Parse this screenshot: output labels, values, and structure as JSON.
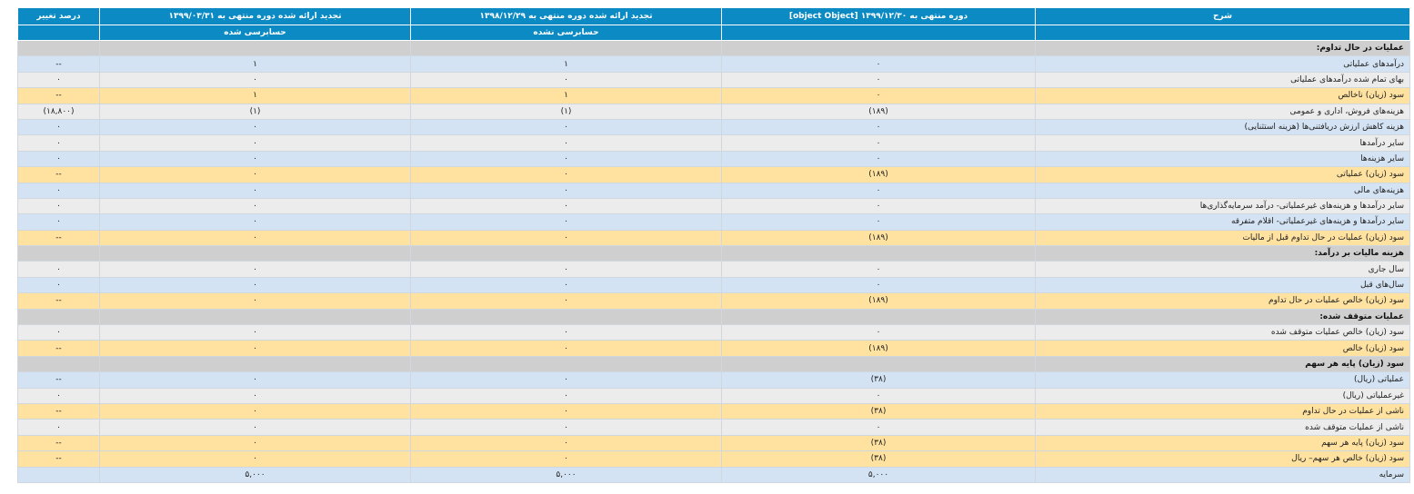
{
  "header": {
    "col_desc": "شرح",
    "col_p1": "دوره منتهی به ۱۳۹۹/۱۲/۳۰ [object Object]",
    "col_p2": "تجدید ارائه شده دوره منتهی به ۱۳۹۸/۱۲/۲۹",
    "col_p3": "تجدید ارائه شده دوره منتهی به ۱۳۹۹/۰۳/۳۱",
    "col_change": "درصد تغییر",
    "sub_p1": "",
    "sub_p2": "حسابرسی نشده",
    "sub_p3": "حسابرسی شده"
  },
  "colors": {
    "header_bg": "#0b8ac4",
    "row_blue": "#d4e3f3",
    "row_gray": "#ececec",
    "row_yellow": "#ffe2a0",
    "section_bg": "#cfcfcf",
    "negative": "#e01f1f"
  },
  "rows": [
    {
      "type": "section",
      "label": "عملیات در حال تداوم:"
    },
    {
      "type": "blue",
      "label": "درآمدهای عملیاتی",
      "p1": "۰",
      "p2": "۱",
      "p3": "۱",
      "change": "--"
    },
    {
      "type": "gray",
      "label": "بهای تمام شده درآمدهای عملیاتی",
      "p1": "۰",
      "p2": "۰",
      "p3": "۰",
      "change": "۰"
    },
    {
      "type": "yellow",
      "label": "سود (زیان) ناخالص",
      "p1": "۰",
      "p2": "۱",
      "p3": "۱",
      "change": "--"
    },
    {
      "type": "gray",
      "label": "هزینه‌های فروش، اداری و عمومی",
      "p1": "(۱۸۹)",
      "p2": "(۱)",
      "p3": "(۱)",
      "change": "(۱۸,۸۰۰)",
      "neg": true
    },
    {
      "type": "blue",
      "label": "هزینه کاهش ارزش دریافتنی‌ها (هزینه استثنایی)",
      "p1": "۰",
      "p2": "۰",
      "p3": "۰",
      "change": "۰"
    },
    {
      "type": "gray",
      "label": "سایر درآمدها",
      "p1": "۰",
      "p2": "۰",
      "p3": "۰",
      "change": "۰"
    },
    {
      "type": "blue",
      "label": "سایر هزینه‌ها",
      "p1": "۰",
      "p2": "۰",
      "p3": "۰",
      "change": "۰"
    },
    {
      "type": "yellow",
      "label": "سود (زیان) عملیاتی",
      "p1": "(۱۸۹)",
      "p2": "۰",
      "p3": "۰",
      "change": "--",
      "neg_p1": true
    },
    {
      "type": "blue",
      "label": "هزینه‌های مالی",
      "p1": "۰",
      "p2": "۰",
      "p3": "۰",
      "change": "۰"
    },
    {
      "type": "gray",
      "label": "سایر درآمدها و هزینه‌های غیرعملیاتی- درآمد سرمایه‌گذاری‌ها",
      "p1": "۰",
      "p2": "۰",
      "p3": "۰",
      "change": "۰"
    },
    {
      "type": "blue",
      "label": "سایر درآمدها و هزینه‌های غیرعملیاتی- اقلام متفرقه",
      "p1": "۰",
      "p2": "۰",
      "p3": "۰",
      "change": "۰"
    },
    {
      "type": "yellow",
      "label": "سود (زیان) عملیات در حال تداوم قبل از مالیات",
      "p1": "(۱۸۹)",
      "p2": "۰",
      "p3": "۰",
      "change": "--",
      "neg_p1": true
    },
    {
      "type": "section",
      "label": "هزینه مالیات بر درآمد:"
    },
    {
      "type": "gray",
      "label": "سال جاری",
      "p1": "۰",
      "p2": "۰",
      "p3": "۰",
      "change": "۰"
    },
    {
      "type": "blue",
      "label": "سال‌های قبل",
      "p1": "۰",
      "p2": "۰",
      "p3": "۰",
      "change": "۰"
    },
    {
      "type": "yellow",
      "label": "سود (زیان) خالص عملیات در حال تداوم",
      "p1": "(۱۸۹)",
      "p2": "۰",
      "p3": "۰",
      "change": "--",
      "neg_p1": true
    },
    {
      "type": "section",
      "label": "عملیات متوقف شده:"
    },
    {
      "type": "gray",
      "label": "سود (زیان) خالص عملیات متوقف شده",
      "p1": "۰",
      "p2": "۰",
      "p3": "۰",
      "change": "۰"
    },
    {
      "type": "yellow",
      "label": "سود (زیان) خالص",
      "p1": "(۱۸۹)",
      "p2": "۰",
      "p3": "۰",
      "change": "--",
      "neg_p1": true
    },
    {
      "type": "section",
      "label": "سود (زیان) پایه هر سهم"
    },
    {
      "type": "blue",
      "label": "عملیاتی (ریال)",
      "p1": "(۳۸)",
      "p2": "۰",
      "p3": "۰",
      "change": "--",
      "neg_p1": true
    },
    {
      "type": "gray",
      "label": "غیرعملیاتی (ریال)",
      "p1": "۰",
      "p2": "۰",
      "p3": "۰",
      "change": "۰"
    },
    {
      "type": "yellow",
      "label": "ناشی از عملیات در حال تداوم",
      "p1": "(۳۸)",
      "p2": "۰",
      "p3": "۰",
      "change": "--",
      "neg_p1": true
    },
    {
      "type": "gray",
      "label": "ناشی از عملیات متوقف شده",
      "p1": "۰",
      "p2": "۰",
      "p3": "۰",
      "change": "۰"
    },
    {
      "type": "yellow",
      "label": "سود (زیان) پایه هر سهم",
      "p1": "(۳۸)",
      "p2": "۰",
      "p3": "۰",
      "change": "--",
      "neg_p1": true
    },
    {
      "type": "yellow",
      "label": "سود (زیان) خالص هر سهم– ریال",
      "p1": "(۳۸)",
      "p2": "۰",
      "p3": "۰",
      "change": "--",
      "neg_p1": true
    },
    {
      "type": "blue",
      "label": "سرمایه",
      "p1": "۵,۰۰۰",
      "p2": "۵,۰۰۰",
      "p3": "۵,۰۰۰",
      "change": ""
    }
  ]
}
